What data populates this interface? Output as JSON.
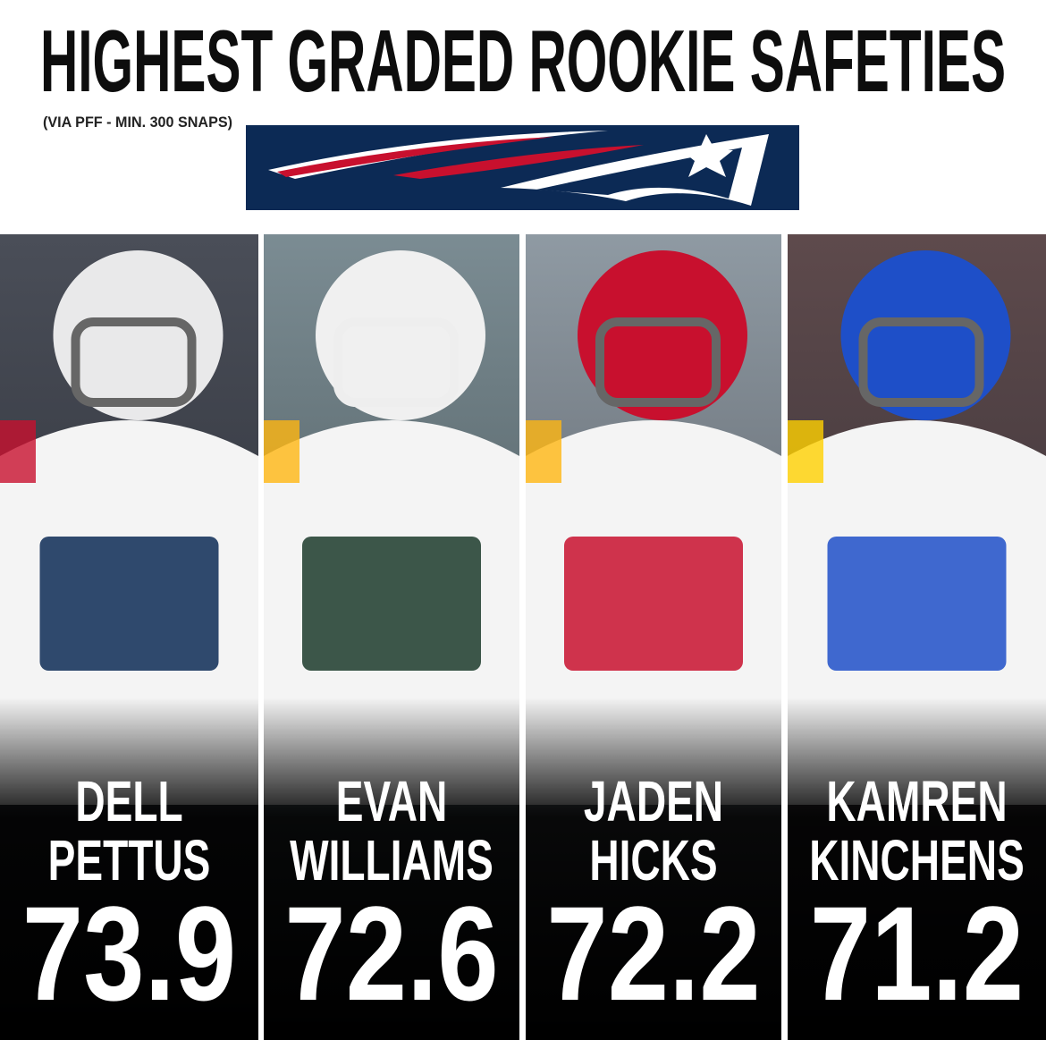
{
  "header": {
    "title": "HIGHEST GRADED ROOKIE SAFETIES",
    "subtitle": "(VIA PFF - MIN. 300 SNAPS)"
  },
  "players": [
    {
      "first": "DELL",
      "last": "PETTUS",
      "grade": 73.9
    },
    {
      "first": "EVAN",
      "last": "WILLIAMS",
      "grade": 72.6
    },
    {
      "first": "JADEN",
      "last": "HICKS",
      "grade": 72.2
    },
    {
      "first": "KAMREN",
      "last": "KINCHENS",
      "grade": 71.2
    }
  ]
}
